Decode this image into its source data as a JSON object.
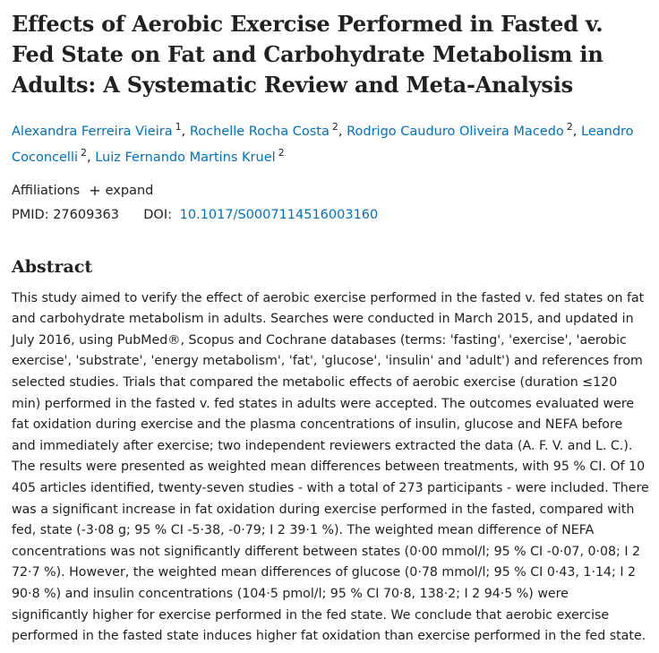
{
  "article": {
    "title": "Effects of Aerobic Exercise Performed in Fasted v. Fed State on Fat and Carbohydrate Metabolism in Adults: A Systematic Review and Meta-Analysis",
    "authors": [
      {
        "name": "Alexandra Ferreira Vieira",
        "affil": "1"
      },
      {
        "name": "Rochelle Rocha Costa",
        "affil": "2"
      },
      {
        "name": "Rodrigo Cauduro Oliveira Macedo",
        "affil": "2"
      },
      {
        "name": "Leandro Coconcelli",
        "affil": "2"
      },
      {
        "name": "Luiz Fernando Martins Kruel",
        "affil": "2"
      }
    ],
    "affiliations_label": "Affiliations",
    "expand_label": "expand",
    "pmid_label": "PMID:",
    "pmid": "27609363",
    "doi_label": "DOI:",
    "doi": "10.1017/S0007114516003160"
  },
  "abstract": {
    "heading": "Abstract",
    "text": "This study aimed to verify the effect of aerobic exercise performed in the fasted v. fed states on fat and carbohydrate metabolism in adults. Searches were conducted in March 2015, and updated in July 2016, using PubMed®, Scopus and Cochrane databases (terms: 'fasting', 'exercise', 'aerobic exercise', 'substrate', 'energy metabolism', 'fat', 'glucose', 'insulin' and 'adult') and references from selected studies. Trials that compared the metabolic effects of aerobic exercise (duration ≤120 min) performed in the fasted v. fed states in adults were accepted. The outcomes evaluated were fat oxidation during exercise and the plasma concentrations of insulin, glucose and NEFA before and immediately after exercise; two independent reviewers extracted the data (A. F. V. and L. C.). The results were presented as weighted mean differences between treatments, with 95 % CI. Of 10 405 articles identified, twenty-seven studies - with a total of 273 participants - were included. There was a significant increase in fat oxidation during exercise performed in the fasted, compared with fed, state (-3·08 g; 95 % CI -5·38, -0·79; I 2 39·1 %). The weighted mean difference of NEFA concentrations was not significantly different between states (0·00 mmol/l; 95 % CI -0·07, 0·08; I 2 72·7 %). However, the weighted mean differences of glucose (0·78 mmol/l; 95 % CI 0·43, 1·14; I 2 90·8 %) and insulin concentrations (104·5 pmol/l; 95 % CI 70·8, 138·2; I 2 94·5 %) were significantly higher for exercise performed in the fed state. We conclude that aerobic exercise performed in the fasted state induces higher fat oxidation than exercise performed in the fed state."
  },
  "colors": {
    "link": "#0071bc",
    "text": "#212121"
  }
}
